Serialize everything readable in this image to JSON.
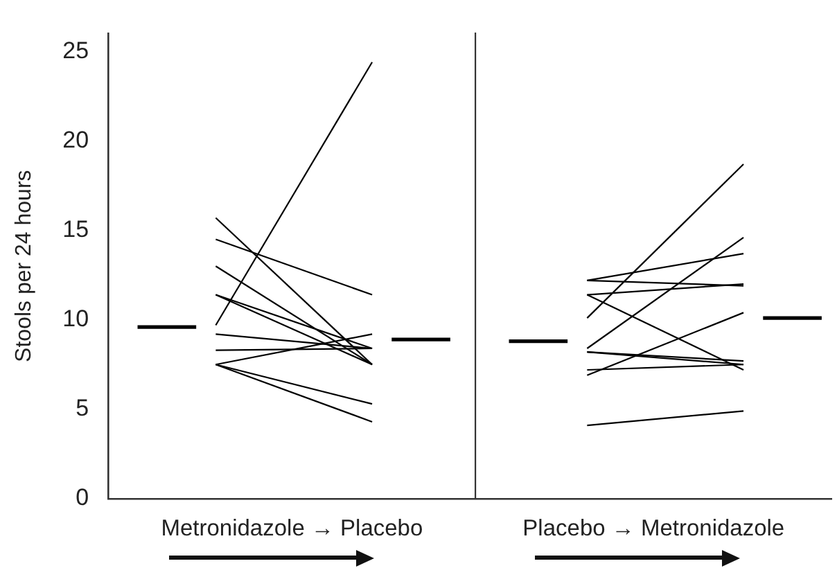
{
  "chart_data": {
    "type": "line",
    "ylabel": "Stools per 24 hours",
    "annotations": [
      "Metronidazole → Placebo",
      "Placebo → Metronidazole"
    ],
    "categories": [
      null,
      null,
      null,
      null,
      null,
      null,
      null,
      null,
      null,
      null,
      null,
      null,
      null,
      null,
      null,
      null,
      null,
      null,
      null,
      null,
      null,
      null,
      null,
      null,
      null,
      null,
      null,
      null,
      null,
      null,
      null,
      null,
      null,
      null,
      null,
      null,
      null
    ],
    "ylim": [
      0,
      26
    ],
    "yticks": [
      0,
      5,
      10,
      15,
      20,
      25
    ],
    "tick_labels": "y",
    "grid": false,
    "legend": false,
    "marker": "none",
    "line_style": "solid",
    "series": [
      {
        "color": "#000000",
        "values": [
          null,
          9.6,
          null,
          null,
          9.6,
          null,
          null,
          null,
          null,
          null,
          null,
          null,
          null,
          null,
          null,
          null,
          null,
          null,
          null,
          null,
          null,
          null,
          null,
          null,
          null,
          null,
          null,
          null,
          null,
          null,
          null,
          null,
          null,
          null,
          null,
          null,
          null
        ]
      },
      {
        "color": "#000000",
        "values": [
          null,
          null,
          null,
          null,
          null,
          null,
          null,
          null,
          null,
          null,
          null,
          null,
          null,
          null,
          8.9,
          null,
          null,
          8.9,
          null,
          null,
          null,
          null,
          null,
          null,
          null,
          null,
          null,
          null,
          null,
          null,
          null,
          null,
          null,
          null,
          null,
          null,
          null
        ]
      },
      {
        "color": "#000000",
        "values": [
          null,
          null,
          null,
          null,
          null,
          9.7,
          null,
          null,
          null,
          null,
          null,
          null,
          null,
          24.4,
          null,
          null,
          null,
          null,
          null,
          null,
          null,
          null,
          null,
          null,
          null,
          null,
          null,
          null,
          null,
          null,
          null,
          null,
          null,
          null,
          null,
          null,
          null
        ]
      },
      {
        "color": "#000000",
        "values": [
          null,
          null,
          null,
          null,
          null,
          15.7,
          null,
          null,
          null,
          null,
          null,
          null,
          null,
          7.5,
          null,
          null,
          null,
          null,
          null,
          null,
          null,
          null,
          null,
          null,
          null,
          null,
          null,
          null,
          null,
          null,
          null,
          null,
          null,
          null,
          null,
          null,
          null
        ]
      },
      {
        "color": "#000000",
        "values": [
          null,
          null,
          null,
          null,
          null,
          14.5,
          null,
          null,
          null,
          null,
          null,
          null,
          null,
          11.4,
          null,
          null,
          null,
          null,
          null,
          null,
          null,
          null,
          null,
          null,
          null,
          null,
          null,
          null,
          null,
          null,
          null,
          null,
          null,
          null,
          null,
          null,
          null
        ]
      },
      {
        "color": "#000000",
        "values": [
          null,
          null,
          null,
          null,
          null,
          13.0,
          null,
          null,
          null,
          null,
          null,
          null,
          null,
          7.5,
          null,
          null,
          null,
          null,
          null,
          null,
          null,
          null,
          null,
          null,
          null,
          null,
          null,
          null,
          null,
          null,
          null,
          null,
          null,
          null,
          null,
          null,
          null
        ]
      },
      {
        "color": "#000000",
        "values": [
          null,
          null,
          null,
          null,
          null,
          11.4,
          null,
          null,
          null,
          null,
          null,
          null,
          null,
          7.5,
          null,
          null,
          null,
          null,
          null,
          null,
          null,
          null,
          null,
          null,
          null,
          null,
          null,
          null,
          null,
          null,
          null,
          null,
          null,
          null,
          null,
          null,
          null
        ]
      },
      {
        "color": "#000000",
        "values": [
          null,
          null,
          null,
          null,
          null,
          11.4,
          null,
          null,
          null,
          null,
          null,
          null,
          null,
          8.4,
          null,
          null,
          null,
          null,
          null,
          null,
          null,
          null,
          null,
          null,
          null,
          null,
          null,
          null,
          null,
          null,
          null,
          null,
          null,
          null,
          null,
          null,
          null
        ]
      },
      {
        "color": "#000000",
        "values": [
          null,
          null,
          null,
          null,
          null,
          9.2,
          null,
          null,
          null,
          null,
          null,
          null,
          null,
          8.4,
          null,
          null,
          null,
          null,
          null,
          null,
          null,
          null,
          null,
          null,
          null,
          null,
          null,
          null,
          null,
          null,
          null,
          null,
          null,
          null,
          null,
          null,
          null
        ]
      },
      {
        "color": "#000000",
        "values": [
          null,
          null,
          null,
          null,
          null,
          8.3,
          null,
          null,
          null,
          null,
          null,
          null,
          null,
          8.4,
          null,
          null,
          null,
          null,
          null,
          null,
          null,
          null,
          null,
          null,
          null,
          null,
          null,
          null,
          null,
          null,
          null,
          null,
          null,
          null,
          null,
          null,
          null
        ]
      },
      {
        "color": "#000000",
        "values": [
          null,
          null,
          null,
          null,
          null,
          7.5,
          null,
          null,
          null,
          null,
          null,
          null,
          null,
          9.2,
          null,
          null,
          null,
          null,
          null,
          null,
          null,
          null,
          null,
          null,
          null,
          null,
          null,
          null,
          null,
          null,
          null,
          null,
          null,
          null,
          null,
          null,
          null
        ]
      },
      {
        "color": "#000000",
        "values": [
          null,
          null,
          null,
          null,
          null,
          7.5,
          null,
          null,
          null,
          null,
          null,
          null,
          null,
          5.3,
          null,
          null,
          null,
          null,
          null,
          null,
          null,
          null,
          null,
          null,
          null,
          null,
          null,
          null,
          null,
          null,
          null,
          null,
          null,
          null,
          null,
          null,
          null
        ]
      },
      {
        "color": "#000000",
        "values": [
          null,
          null,
          null,
          null,
          null,
          7.5,
          null,
          null,
          null,
          null,
          null,
          null,
          null,
          4.3,
          null,
          null,
          null,
          null,
          null,
          null,
          null,
          null,
          null,
          null,
          null,
          null,
          null,
          null,
          null,
          null,
          null,
          null,
          null,
          null,
          null,
          null,
          null
        ]
      },
      {
        "color": "#000000",
        "values": [
          null,
          null,
          null,
          null,
          null,
          null,
          null,
          null,
          null,
          null,
          null,
          null,
          null,
          null,
          null,
          null,
          null,
          null,
          null,
          null,
          8.8,
          null,
          null,
          8.8,
          null,
          null,
          null,
          null,
          null,
          null,
          null,
          null,
          null,
          null,
          null,
          null,
          null
        ]
      },
      {
        "color": "#000000",
        "values": [
          null,
          null,
          null,
          null,
          null,
          null,
          null,
          null,
          null,
          null,
          null,
          null,
          null,
          null,
          null,
          null,
          null,
          null,
          null,
          null,
          null,
          null,
          null,
          null,
          null,
          null,
          null,
          null,
          null,
          null,
          null,
          null,
          null,
          10.1,
          null,
          null,
          10.1
        ]
      },
      {
        "color": "#000000",
        "values": [
          null,
          null,
          null,
          null,
          null,
          null,
          null,
          null,
          null,
          null,
          null,
          null,
          null,
          null,
          null,
          null,
          null,
          null,
          null,
          null,
          null,
          null,
          null,
          null,
          10.1,
          null,
          null,
          null,
          null,
          null,
          null,
          null,
          18.7,
          null,
          null,
          null,
          null
        ]
      },
      {
        "color": "#000000",
        "values": [
          null,
          null,
          null,
          null,
          null,
          null,
          null,
          null,
          null,
          null,
          null,
          null,
          null,
          null,
          null,
          null,
          null,
          null,
          null,
          null,
          null,
          null,
          null,
          null,
          8.4,
          null,
          null,
          null,
          null,
          null,
          null,
          null,
          14.6,
          null,
          null,
          null,
          null
        ]
      },
      {
        "color": "#000000",
        "values": [
          null,
          null,
          null,
          null,
          null,
          null,
          null,
          null,
          null,
          null,
          null,
          null,
          null,
          null,
          null,
          null,
          null,
          null,
          null,
          null,
          null,
          null,
          null,
          null,
          12.2,
          null,
          null,
          null,
          null,
          null,
          null,
          null,
          13.7,
          null,
          null,
          null,
          null
        ]
      },
      {
        "color": "#000000",
        "values": [
          null,
          null,
          null,
          null,
          null,
          null,
          null,
          null,
          null,
          null,
          null,
          null,
          null,
          null,
          null,
          null,
          null,
          null,
          null,
          null,
          null,
          null,
          null,
          null,
          12.2,
          null,
          null,
          null,
          null,
          null,
          null,
          null,
          11.9,
          null,
          null,
          null,
          null
        ]
      },
      {
        "color": "#000000",
        "values": [
          null,
          null,
          null,
          null,
          null,
          null,
          null,
          null,
          null,
          null,
          null,
          null,
          null,
          null,
          null,
          null,
          null,
          null,
          null,
          null,
          null,
          null,
          null,
          null,
          11.4,
          null,
          null,
          null,
          null,
          null,
          null,
          null,
          12.0,
          null,
          null,
          null,
          null
        ]
      },
      {
        "color": "#000000",
        "values": [
          null,
          null,
          null,
          null,
          null,
          null,
          null,
          null,
          null,
          null,
          null,
          null,
          null,
          null,
          null,
          null,
          null,
          null,
          null,
          null,
          null,
          null,
          null,
          null,
          11.4,
          null,
          null,
          null,
          null,
          null,
          null,
          null,
          7.2,
          null,
          null,
          null,
          null
        ]
      },
      {
        "color": "#000000",
        "values": [
          null,
          null,
          null,
          null,
          null,
          null,
          null,
          null,
          null,
          null,
          null,
          null,
          null,
          null,
          null,
          null,
          null,
          null,
          null,
          null,
          null,
          null,
          null,
          null,
          8.2,
          null,
          null,
          null,
          null,
          null,
          null,
          null,
          7.7,
          null,
          null,
          null,
          null
        ]
      },
      {
        "color": "#000000",
        "values": [
          null,
          null,
          null,
          null,
          null,
          null,
          null,
          null,
          null,
          null,
          null,
          null,
          null,
          null,
          null,
          null,
          null,
          null,
          null,
          null,
          null,
          null,
          null,
          null,
          8.2,
          null,
          null,
          null,
          null,
          null,
          null,
          null,
          7.5,
          null,
          null,
          null,
          null
        ]
      },
      {
        "color": "#000000",
        "values": [
          null,
          null,
          null,
          null,
          null,
          null,
          null,
          null,
          null,
          null,
          null,
          null,
          null,
          null,
          null,
          null,
          null,
          null,
          null,
          null,
          null,
          null,
          null,
          null,
          7.2,
          null,
          null,
          null,
          null,
          null,
          null,
          null,
          7.5,
          null,
          null,
          null,
          null
        ]
      },
      {
        "color": "#000000",
        "values": [
          null,
          null,
          null,
          null,
          null,
          null,
          null,
          null,
          null,
          null,
          null,
          null,
          null,
          null,
          null,
          null,
          null,
          null,
          null,
          null,
          null,
          null,
          null,
          null,
          6.9,
          null,
          null,
          null,
          null,
          null,
          null,
          null,
          10.4,
          null,
          null,
          null,
          null
        ]
      },
      {
        "color": "#000000",
        "values": [
          null,
          null,
          null,
          null,
          null,
          null,
          null,
          null,
          null,
          null,
          null,
          null,
          null,
          null,
          null,
          null,
          null,
          null,
          null,
          null,
          null,
          null,
          null,
          null,
          4.1,
          null,
          null,
          null,
          null,
          null,
          null,
          null,
          4.9,
          null,
          null,
          null,
          null
        ]
      }
    ]
  }
}
